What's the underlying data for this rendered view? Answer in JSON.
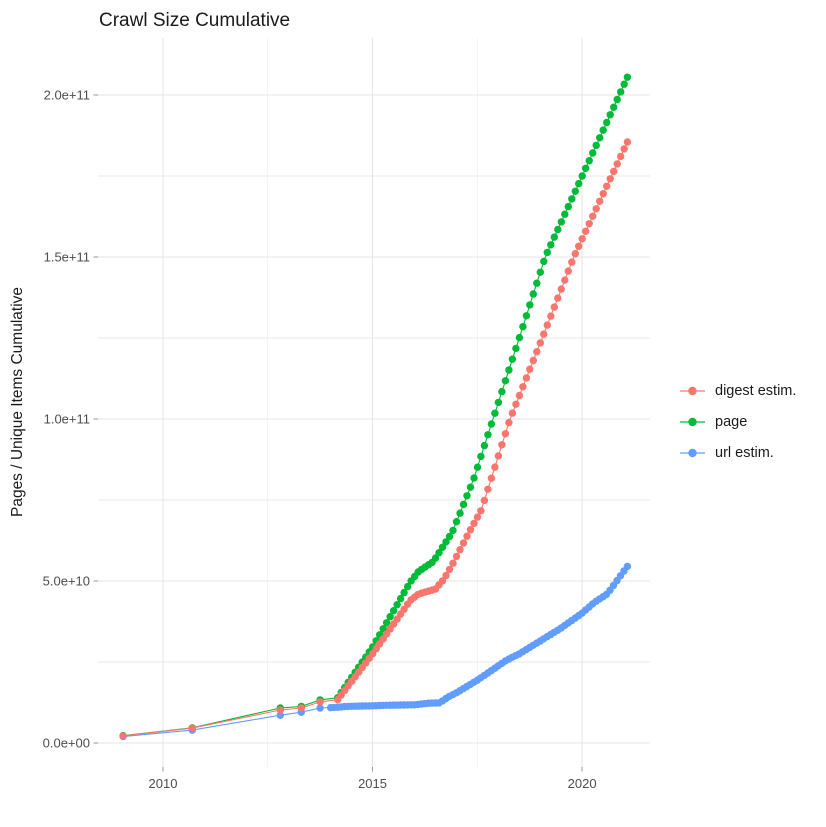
{
  "chart_data": {
    "type": "scatter",
    "title": "Crawl Size Cumulative",
    "xlabel": "",
    "ylabel": "Pages / Unique Items Cumulative",
    "x_ticks": [
      2010,
      2015,
      2020
    ],
    "x_tick_labels": [
      "2010",
      "2015",
      "2020"
    ],
    "x_minor_ticks": [
      2012.5,
      2017.5
    ],
    "y_ticks_e9": [
      0,
      50,
      100,
      150,
      200
    ],
    "y_tick_labels": [
      "0.0e+00",
      "5.0e+10",
      "1.0e+11",
      "1.5e+11",
      "2.0e+11"
    ],
    "y_minor_ticks_e9": [
      25,
      75,
      125,
      175
    ],
    "xlim": [
      2008.45,
      2021.62
    ],
    "ylim_e9": [
      -7.4,
      217.6
    ],
    "value_unit": "billions (1e9) of pages / unique items",
    "grid": true,
    "legend_position": "right",
    "sampling_note": "dots are approximately monthly crawls; anchors estimated from gridlines",
    "colors": {
      "digest": "#F8766D",
      "page": "#00BA38",
      "url": "#619CFF",
      "grid_major": "#E4E4E4",
      "grid_minor": "#E9E9E9",
      "tick_mark": "#999999",
      "tick_text": "#4d4d4d",
      "text": "#1a1a1a"
    },
    "series": [
      {
        "id": "digest-estim",
        "name": "digest estim.",
        "color": "#F8766D",
        "z": 2,
        "dense_from": 2014.17,
        "anchors": [
          [
            2009.05,
            2.2
          ],
          [
            2010.7,
            4.6
          ],
          [
            2012.8,
            10.2
          ],
          [
            2013.3,
            10.8
          ],
          [
            2013.75,
            12.7
          ],
          [
            2014.17,
            13.4
          ],
          [
            2015.0,
            27.5
          ],
          [
            2015.9,
            44.0
          ],
          [
            2016.1,
            46.0
          ],
          [
            2016.5,
            47.5
          ],
          [
            2016.7,
            50.5
          ],
          [
            2016.9,
            55.0
          ],
          [
            2017.3,
            65.0
          ],
          [
            2017.6,
            72.0
          ],
          [
            2018.28,
            100.0
          ],
          [
            2019.05,
            125.0
          ],
          [
            2019.8,
            150.0
          ],
          [
            2021.08,
            185.5
          ]
        ]
      },
      {
        "id": "page",
        "name": "page",
        "color": "#00BA38",
        "z": 0,
        "dense_from": 2014.17,
        "anchors": [
          [
            2009.05,
            2.3
          ],
          [
            2010.7,
            4.7
          ],
          [
            2012.8,
            10.8
          ],
          [
            2013.3,
            11.3
          ],
          [
            2013.75,
            13.3
          ],
          [
            2014.17,
            14.0
          ],
          [
            2015.0,
            29.6
          ],
          [
            2015.9,
            49.7
          ],
          [
            2016.1,
            53.0
          ],
          [
            2016.45,
            56.0
          ],
          [
            2016.9,
            65.0
          ],
          [
            2017.4,
            81.0
          ],
          [
            2018.5,
            125.0
          ],
          [
            2019.12,
            150.0
          ],
          [
            2021.08,
            205.5
          ]
        ]
      },
      {
        "id": "url-estim",
        "name": "url estim.",
        "color": "#619CFF",
        "z": 1,
        "dense_from": 2014.0,
        "anchors": [
          [
            2009.05,
            2.0
          ],
          [
            2010.7,
            4.0
          ],
          [
            2012.8,
            8.6
          ],
          [
            2013.3,
            9.5
          ],
          [
            2013.75,
            10.8
          ],
          [
            2014.1,
            11.0
          ],
          [
            2014.4,
            11.3
          ],
          [
            2015.0,
            11.5
          ],
          [
            2015.5,
            11.7
          ],
          [
            2016.0,
            11.8
          ],
          [
            2016.35,
            12.3
          ],
          [
            2016.6,
            12.4
          ],
          [
            2016.8,
            14.2
          ],
          [
            2017.0,
            15.5
          ],
          [
            2017.5,
            19.4
          ],
          [
            2018.2,
            25.6
          ],
          [
            2018.5,
            27.5
          ],
          [
            2019.0,
            31.5
          ],
          [
            2019.5,
            35.5
          ],
          [
            2020.0,
            40.1
          ],
          [
            2020.3,
            43.5
          ],
          [
            2020.6,
            46.0
          ],
          [
            2021.08,
            54.5
          ]
        ]
      }
    ]
  }
}
